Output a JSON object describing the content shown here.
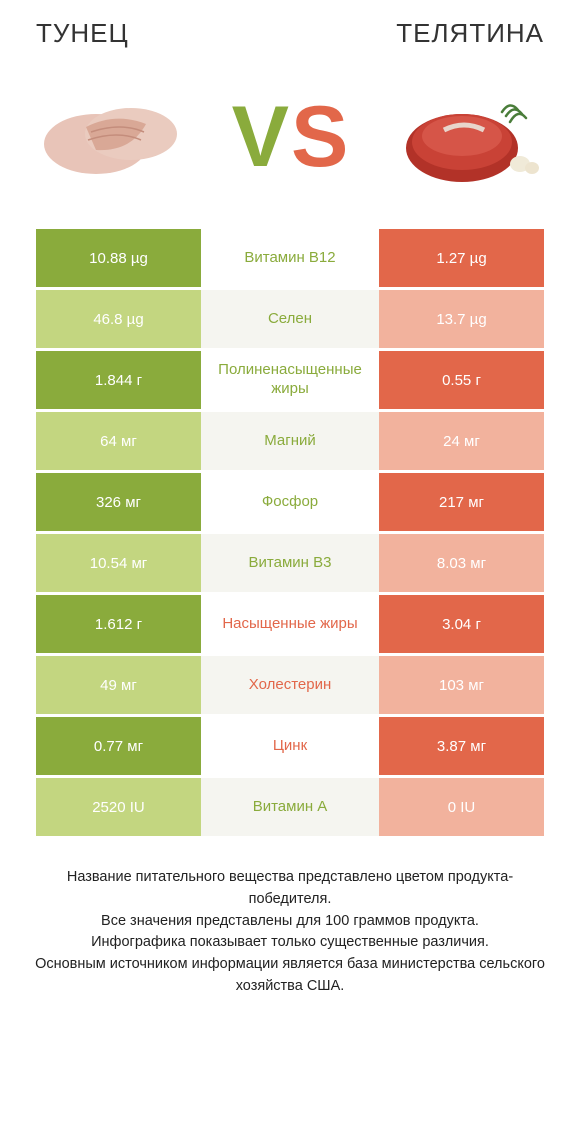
{
  "header": {
    "left_title": "ТУНЕЦ",
    "right_title": "ТЕЛЯТИНА"
  },
  "colors": {
    "green_dark": "#8aab3c",
    "green_light": "#c3d680",
    "red_dark": "#e2674a",
    "red_light": "#f2b29d",
    "vs_v": "#8aab3c",
    "vs_s": "#e2674a",
    "label_green": "#8aab3c",
    "label_red": "#e2674a",
    "bg": "#ffffff"
  },
  "comparison": {
    "type": "table",
    "rows": [
      {
        "left": "10.88 µg",
        "label": "Витамин B12",
        "right": "1.27 µg",
        "winner": "left"
      },
      {
        "left": "46.8 µg",
        "label": "Селен",
        "right": "13.7 µg",
        "winner": "left"
      },
      {
        "left": "1.844 г",
        "label": "Полиненасыщенные жиры",
        "right": "0.55 г",
        "winner": "left"
      },
      {
        "left": "64 мг",
        "label": "Магний",
        "right": "24 мг",
        "winner": "left"
      },
      {
        "left": "326 мг",
        "label": "Фосфор",
        "right": "217 мг",
        "winner": "left"
      },
      {
        "left": "10.54 мг",
        "label": "Витамин B3",
        "right": "8.03 мг",
        "winner": "left"
      },
      {
        "left": "1.612 г",
        "label": "Насыщенные жиры",
        "right": "3.04 г",
        "winner": "right"
      },
      {
        "left": "49 мг",
        "label": "Холестерин",
        "right": "103 мг",
        "winner": "right"
      },
      {
        "left": "0.77 мг",
        "label": "Цинк",
        "right": "3.87 мг",
        "winner": "right"
      },
      {
        "left": "2520 IU",
        "label": "Витамин A",
        "right": "0 IU",
        "winner": "left"
      }
    ]
  },
  "footer": {
    "line1": "Название питательного вещества представлено цветом продукта-победителя.",
    "line2": "Все значения представлены для 100 граммов продукта.",
    "line3": "Инфографика показывает только существенные различия.",
    "line4": "Основным источником информации является база министерства сельского хозяйства США."
  }
}
